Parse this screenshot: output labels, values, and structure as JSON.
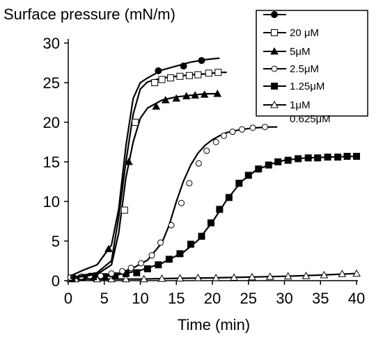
{
  "chart_data": {
    "type": "line",
    "ylabel": "Surface pressure (mN/m)",
    "xlabel": "Time (min)",
    "xlim": [
      0,
      40
    ],
    "ylim": [
      0,
      30
    ],
    "xticks": [
      "0",
      "5",
      "10",
      "15",
      "20",
      "25",
      "30",
      "35",
      "40"
    ],
    "yticks": [
      "0",
      "5",
      "10",
      "15",
      "20",
      "25",
      "30"
    ],
    "grid": false,
    "legend_position": "top-right",
    "series": [
      {
        "name": "",
        "marker": "filled-circle",
        "points": [
          [
            0.3,
            0.6
          ],
          [
            2,
            1.3
          ],
          [
            4,
            2
          ],
          [
            6,
            4.5
          ],
          [
            7,
            9
          ],
          [
            8,
            17
          ],
          [
            9,
            23
          ],
          [
            10,
            25
          ],
          [
            11,
            25.6
          ],
          [
            13,
            26.6
          ],
          [
            15,
            27.1
          ],
          [
            17,
            27.6
          ],
          [
            19,
            27.9
          ],
          [
            21,
            28.1
          ]
        ],
        "marker_points": [
          [
            12.5,
            26.5
          ],
          [
            16,
            27.1
          ],
          [
            18.5,
            27.8
          ]
        ]
      },
      {
        "name": "20 μM",
        "marker": "open-square",
        "points": [
          [
            0.3,
            0.4
          ],
          [
            4,
            1
          ],
          [
            6,
            2.5
          ],
          [
            7,
            8
          ],
          [
            8,
            15
          ],
          [
            9,
            21
          ],
          [
            10,
            24.2
          ],
          [
            11,
            25.1
          ],
          [
            13,
            25.6
          ],
          [
            15,
            25.8
          ],
          [
            17,
            26
          ],
          [
            19,
            26.1
          ],
          [
            21,
            26.3
          ],
          [
            22,
            26.3
          ]
        ],
        "marker_points": [
          [
            7.8,
            8.9
          ],
          [
            9.3,
            20
          ],
          [
            12,
            25
          ],
          [
            13,
            25.4
          ],
          [
            14.2,
            25.6
          ],
          [
            15.5,
            25.8
          ],
          [
            16.8,
            25.9
          ],
          [
            18,
            26
          ],
          [
            19.5,
            26.2
          ],
          [
            20.8,
            26.3
          ]
        ]
      },
      {
        "name": "5μM",
        "marker": "filled-triangle",
        "points": [
          [
            0.3,
            0.3
          ],
          [
            4,
            0.8
          ],
          [
            6,
            2
          ],
          [
            7,
            6
          ],
          [
            8,
            13
          ],
          [
            9,
            17.5
          ],
          [
            10,
            20.5
          ],
          [
            11,
            21.8
          ],
          [
            13,
            22.8
          ],
          [
            15,
            23.2
          ],
          [
            17,
            23.4
          ],
          [
            19,
            23.6
          ],
          [
            21,
            23.6
          ]
        ],
        "marker_points": [
          [
            5.6,
            4
          ],
          [
            8.4,
            15
          ],
          [
            12.2,
            22
          ],
          [
            13.5,
            22.8
          ],
          [
            15,
            23
          ],
          [
            16.4,
            23.3
          ],
          [
            17.6,
            23.4
          ],
          [
            18.9,
            23.5
          ],
          [
            20.7,
            23.6
          ]
        ]
      },
      {
        "name": "2.5μM",
        "marker": "open-circle",
        "points": [
          [
            0.3,
            0.4
          ],
          [
            4,
            0.6
          ],
          [
            7,
            0.9
          ],
          [
            9,
            1.6
          ],
          [
            11,
            2.6
          ],
          [
            13,
            4.8
          ],
          [
            14,
            7
          ],
          [
            15,
            10
          ],
          [
            16,
            12.6
          ],
          [
            17,
            14.6
          ],
          [
            18,
            16.1
          ],
          [
            19,
            17.1
          ],
          [
            20,
            17.8
          ],
          [
            21,
            18.3
          ],
          [
            22,
            18.7
          ],
          [
            24,
            19.1
          ],
          [
            26,
            19.3
          ],
          [
            28,
            19.4
          ],
          [
            29,
            19.4
          ]
        ],
        "marker_points": [
          [
            0.3,
            0.4
          ],
          [
            1.8,
            0.5
          ],
          [
            3,
            0.6
          ],
          [
            4.5,
            0.6
          ],
          [
            6,
            0.9
          ],
          [
            7.5,
            1.2
          ],
          [
            8.7,
            1.6
          ],
          [
            10.1,
            2.2
          ],
          [
            11.6,
            3.2
          ],
          [
            12.8,
            4.8
          ],
          [
            14.3,
            7
          ],
          [
            15.7,
            9.8
          ],
          [
            16.8,
            12.3
          ],
          [
            18.1,
            14.8
          ],
          [
            19.2,
            16.4
          ],
          [
            20.5,
            17.5
          ],
          [
            21.6,
            18.3
          ],
          [
            22.8,
            18.8
          ],
          [
            24.1,
            19.1
          ],
          [
            25.6,
            19.3
          ],
          [
            27.3,
            19.4
          ]
        ]
      },
      {
        "name": "1.25μM",
        "marker": "filled-square",
        "points": [
          [
            0.3,
            0.3
          ],
          [
            6,
            0.6
          ],
          [
            10,
            1.3
          ],
          [
            13,
            2.2
          ],
          [
            16,
            3.6
          ],
          [
            18,
            5.1
          ],
          [
            20,
            7.4
          ],
          [
            22,
            10.2
          ],
          [
            24,
            12.5
          ],
          [
            26,
            13.9
          ],
          [
            28,
            14.7
          ],
          [
            30,
            15.2
          ],
          [
            33,
            15.5
          ],
          [
            36,
            15.6
          ],
          [
            40,
            15.7
          ]
        ],
        "marker_points": [
          [
            0.5,
            0.3
          ],
          [
            2,
            0.4
          ],
          [
            3.5,
            0.5
          ],
          [
            5,
            0.5
          ],
          [
            6.5,
            0.6
          ],
          [
            8,
            0.9
          ],
          [
            9.5,
            1
          ],
          [
            11,
            1.5
          ],
          [
            12.5,
            2
          ],
          [
            14,
            2.7
          ],
          [
            15.5,
            3.4
          ],
          [
            17,
            4.6
          ],
          [
            18.5,
            5.6
          ],
          [
            19.8,
            7.3
          ],
          [
            21,
            9
          ],
          [
            22.3,
            10.5
          ],
          [
            23.7,
            12.3
          ],
          [
            25,
            13.3
          ],
          [
            26.4,
            14.1
          ],
          [
            27.8,
            14.6
          ],
          [
            29.1,
            15
          ],
          [
            30.5,
            15.2
          ],
          [
            31.9,
            15.4
          ],
          [
            33.3,
            15.5
          ],
          [
            34.6,
            15.5
          ],
          [
            36,
            15.6
          ],
          [
            37.4,
            15.6
          ],
          [
            38.7,
            15.7
          ],
          [
            40,
            15.7
          ]
        ]
      },
      {
        "name": "1μM",
        "marker": "open-triangle",
        "points": [
          [
            0.3,
            0.2
          ],
          [
            5,
            0.2
          ],
          [
            10,
            0.2
          ],
          [
            15,
            0.3
          ],
          [
            20,
            0.35
          ],
          [
            25,
            0.45
          ],
          [
            30,
            0.55
          ],
          [
            35,
            0.7
          ],
          [
            40,
            0.9
          ]
        ],
        "marker_points": [
          [
            0.3,
            0.2
          ],
          [
            1,
            0.2
          ],
          [
            4,
            0.2
          ],
          [
            6,
            0.2
          ],
          [
            8,
            0.2
          ],
          [
            10.5,
            0.2
          ],
          [
            13,
            0.25
          ],
          [
            15.5,
            0.3
          ],
          [
            18,
            0.35
          ],
          [
            20.5,
            0.35
          ],
          [
            23,
            0.4
          ],
          [
            25.5,
            0.45
          ],
          [
            28,
            0.5
          ],
          [
            30.5,
            0.55
          ],
          [
            33,
            0.6
          ],
          [
            35.5,
            0.7
          ],
          [
            38,
            0.85
          ],
          [
            40,
            0.9
          ]
        ]
      },
      {
        "name": "0.625μM",
        "marker": "none",
        "points": [],
        "marker_points": []
      }
    ]
  }
}
